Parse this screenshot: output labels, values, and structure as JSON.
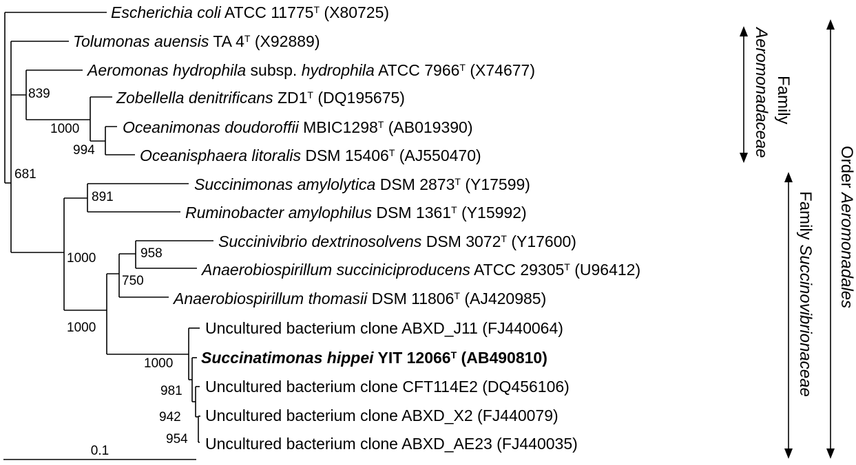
{
  "taxa": [
    {
      "id": "ecoli",
      "segments": [
        {
          "t": "Escherichia coli",
          "i": true
        },
        {
          "t": " ATCC 11775"
        },
        {
          "t": "T",
          "sup": true
        },
        {
          "t": " (X80725)"
        }
      ]
    },
    {
      "id": "tolumonas",
      "segments": [
        {
          "t": "Tolumonas auensis",
          "i": true
        },
        {
          "t": " TA 4"
        },
        {
          "t": "T",
          "sup": true
        },
        {
          "t": " (X92889)"
        }
      ]
    },
    {
      "id": "aeromonas",
      "segments": [
        {
          "t": "Aeromonas hydrophila",
          "i": true
        },
        {
          "t": " subsp. "
        },
        {
          "t": "hydrophila",
          "i": true
        },
        {
          "t": " ATCC 7966"
        },
        {
          "t": "T",
          "sup": true
        },
        {
          "t": " (X74677)"
        }
      ]
    },
    {
      "id": "zobellella",
      "segments": [
        {
          "t": "Zobellella denitrificans",
          "i": true
        },
        {
          "t": " ZD1"
        },
        {
          "t": "T",
          "sup": true
        },
        {
          "t": " (DQ195675)"
        }
      ]
    },
    {
      "id": "oceanimonas",
      "segments": [
        {
          "t": "Oceanimonas doudoroffii",
          "i": true
        },
        {
          "t": " MBIC1298"
        },
        {
          "t": "T",
          "sup": true
        },
        {
          "t": " (AB019390)"
        }
      ]
    },
    {
      "id": "oceanisphaera",
      "segments": [
        {
          "t": "Oceanisphaera litoralis",
          "i": true
        },
        {
          "t": " DSM 15406"
        },
        {
          "t": "T",
          "sup": true
        },
        {
          "t": " (AJ550470)"
        }
      ]
    },
    {
      "id": "succinimonas",
      "segments": [
        {
          "t": "Succinimonas amylolytica",
          "i": true
        },
        {
          "t": " DSM 2873"
        },
        {
          "t": "T",
          "sup": true
        },
        {
          "t": " (Y17599)"
        }
      ]
    },
    {
      "id": "ruminobacter",
      "segments": [
        {
          "t": "Ruminobacter amylophilus",
          "i": true
        },
        {
          "t": " DSM 1361"
        },
        {
          "t": "T",
          "sup": true
        },
        {
          "t": " (Y15992)"
        }
      ]
    },
    {
      "id": "succinivibrio",
      "segments": [
        {
          "t": "Succinivibrio dextrinosolvens",
          "i": true
        },
        {
          "t": " DSM 3072"
        },
        {
          "t": "T",
          "sup": true
        },
        {
          "t": " (Y17600)"
        }
      ]
    },
    {
      "id": "anaero-succ",
      "segments": [
        {
          "t": "Anaerobiospirillum succiniciproducens",
          "i": true
        },
        {
          "t": " ATCC 29305"
        },
        {
          "t": "T",
          "sup": true
        },
        {
          "t": " (U96412)"
        }
      ]
    },
    {
      "id": "anaero-thom",
      "segments": [
        {
          "t": "Anaerobiospirillum thomasii",
          "i": true
        },
        {
          "t": " DSM 11806"
        },
        {
          "t": "T",
          "sup": true
        },
        {
          "t": " (AJ420985)"
        }
      ]
    },
    {
      "id": "abxd-j11",
      "segments": [
        {
          "t": "Uncultured bacterium clone ABXD_J11 (FJ440064)"
        }
      ]
    },
    {
      "id": "succinatimonas",
      "segments": [
        {
          "t": "Succinatimonas hippei",
          "i": true,
          "b": true
        },
        {
          "t": " YIT 12066",
          "b": true
        },
        {
          "t": "T",
          "sup": true,
          "b": true
        },
        {
          "t": " (AB490810)",
          "b": true
        }
      ]
    },
    {
      "id": "cft114e2",
      "segments": [
        {
          "t": "Uncultured bacterium clone CFT114E2 (DQ456106)"
        }
      ]
    },
    {
      "id": "abxd-x2",
      "segments": [
        {
          "t": "Uncultured bacterium clone ABXD_X2 (FJ440079)"
        }
      ]
    },
    {
      "id": "abxd-ae23",
      "segments": [
        {
          "t": "Uncultured bacterium clone ABXD_AE23 (FJ440035)"
        }
      ]
    }
  ],
  "bootstrap": [
    "839",
    "1000",
    "994",
    "681",
    "891",
    "1000",
    "958",
    "750",
    "1000",
    "1000",
    "981",
    "942",
    "954"
  ],
  "scale_bar": {
    "label": "0.1"
  },
  "groups": {
    "family_aeromonadaceae": {
      "line1": "Family",
      "line2": "Aeromonadaceae"
    },
    "family_succinovibrionaceae": {
      "line1": "Family ",
      "line2": "Succinovibrionaceae"
    },
    "order_aeromonadales": {
      "line1": "Order ",
      "line2": "Aeromonadales"
    }
  },
  "colors": {
    "stroke": "#000000",
    "background": "#ffffff"
  }
}
